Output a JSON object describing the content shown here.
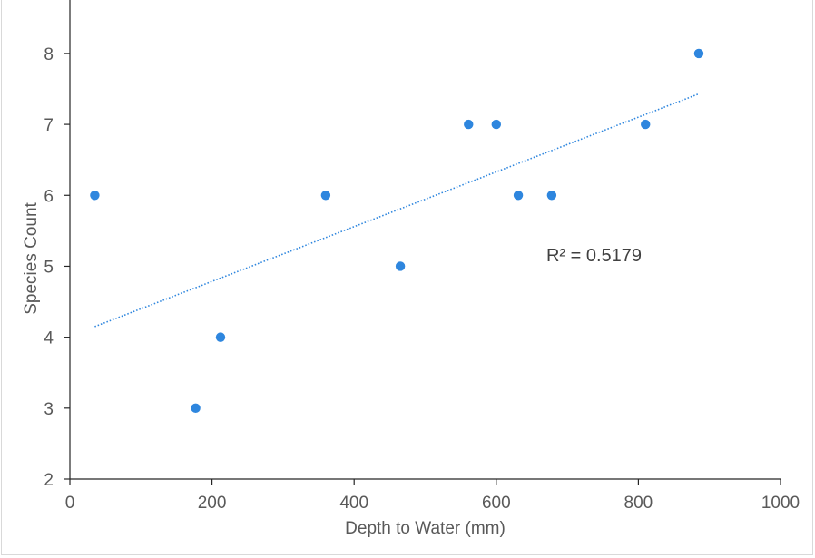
{
  "chart_data": {
    "type": "scatter",
    "title": "",
    "xlabel": "Depth to Water (mm)",
    "ylabel": "Species Count",
    "xlim": [
      0,
      1000
    ],
    "ylim": [
      2,
      8.6
    ],
    "xticks": [
      0,
      200,
      400,
      600,
      800,
      1000
    ],
    "yticks": [
      2,
      3,
      4,
      5,
      6,
      7,
      8
    ],
    "grid": false,
    "legend": "none",
    "series": [
      {
        "name": "Species Count",
        "color": "#2e86de",
        "points": [
          {
            "x": 35,
            "y": 6
          },
          {
            "x": 177,
            "y": 3
          },
          {
            "x": 212,
            "y": 4
          },
          {
            "x": 360,
            "y": 6
          },
          {
            "x": 465,
            "y": 5
          },
          {
            "x": 561,
            "y": 7
          },
          {
            "x": 600,
            "y": 7
          },
          {
            "x": 631,
            "y": 6
          },
          {
            "x": 678,
            "y": 6
          },
          {
            "x": 810,
            "y": 7
          },
          {
            "x": 885,
            "y": 8
          }
        ]
      }
    ],
    "trendline": {
      "type": "linear",
      "x_range": [
        35,
        885
      ],
      "y_values": [
        4.15,
        7.43
      ],
      "color": "#2e86de",
      "style": "dotted"
    },
    "annotations": [
      {
        "text": "R² = 0.5179",
        "x": 765,
        "y": 5.2
      }
    ]
  }
}
